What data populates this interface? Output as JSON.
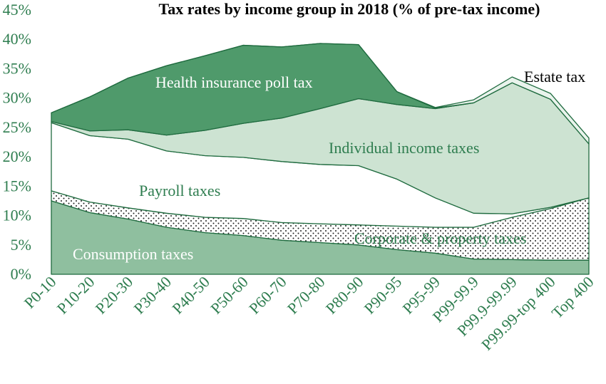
{
  "chart_data": {
    "type": "area",
    "title": "Tax rates by income group in 2018 (% of pre-tax income)",
    "categories": [
      "P0-10",
      "P10-20",
      "P20-30",
      "P30-40",
      "P40-50",
      "P50-60",
      "P60-70",
      "P70-80",
      "P80-90",
      "P90-95",
      "P95-99",
      "P99-99.9",
      "P99.9-99.99",
      "P99.99-top 400",
      "Top 400"
    ],
    "ylim": [
      0,
      45
    ],
    "yticks": [
      "0%",
      "5%",
      "10%",
      "15%",
      "20%",
      "25%",
      "30%",
      "35%",
      "40%",
      "45%"
    ],
    "stacked": true,
    "grid": false,
    "legend": "inline labels",
    "series": [
      {
        "name": "Consumption taxes",
        "color": "#8fbf9f",
        "pattern": "solid",
        "values": [
          12.5,
          10.5,
          9.4,
          8.0,
          7.1,
          6.6,
          5.8,
          5.4,
          5.0,
          4.2,
          3.6,
          2.6,
          2.5,
          2.4,
          2.4
        ]
      },
      {
        "name": "Corporate & property taxes",
        "color": "#ffffff",
        "pattern": "dots",
        "values": [
          1.7,
          1.8,
          1.9,
          2.4,
          2.6,
          2.9,
          3.0,
          3.2,
          3.4,
          4.0,
          4.4,
          5.4,
          7.2,
          8.8,
          10.6
        ]
      },
      {
        "name": "Payroll taxes",
        "color": "#ffffff",
        "pattern": "solid",
        "values": [
          11.6,
          11.3,
          11.7,
          10.6,
          10.5,
          10.4,
          10.4,
          10.1,
          10.1,
          8.0,
          5.0,
          2.4,
          0.6,
          0.2,
          0.0
        ]
      },
      {
        "name": "Individual income taxes",
        "color": "#cde3d2",
        "pattern": "solid",
        "values": [
          0.2,
          0.8,
          1.6,
          2.7,
          4.3,
          5.8,
          7.4,
          9.5,
          11.4,
          12.7,
          15.2,
          18.8,
          22.3,
          18.4,
          9.2
        ]
      },
      {
        "name": "Health insurance poll tax",
        "color": "#4f9a6b",
        "pattern": "solid",
        "values": [
          1.5,
          5.8,
          8.8,
          11.8,
          12.7,
          13.3,
          12.1,
          11.1,
          9.2,
          2.2,
          0.1,
          0.0,
          0.0,
          0.0,
          0.0
        ]
      },
      {
        "name": "Estate tax",
        "color": "#e9f3ec",
        "pattern": "solid",
        "values": [
          0.0,
          0.0,
          0.0,
          0.0,
          0.0,
          0.0,
          0.0,
          0.0,
          0.0,
          0.0,
          0.1,
          0.5,
          1.0,
          1.0,
          1.0
        ]
      }
    ],
    "colors": {
      "text": "#2e7d4f",
      "axis": "#2e7d4f",
      "title": "#000000",
      "outline": "#1f6b3f"
    }
  }
}
